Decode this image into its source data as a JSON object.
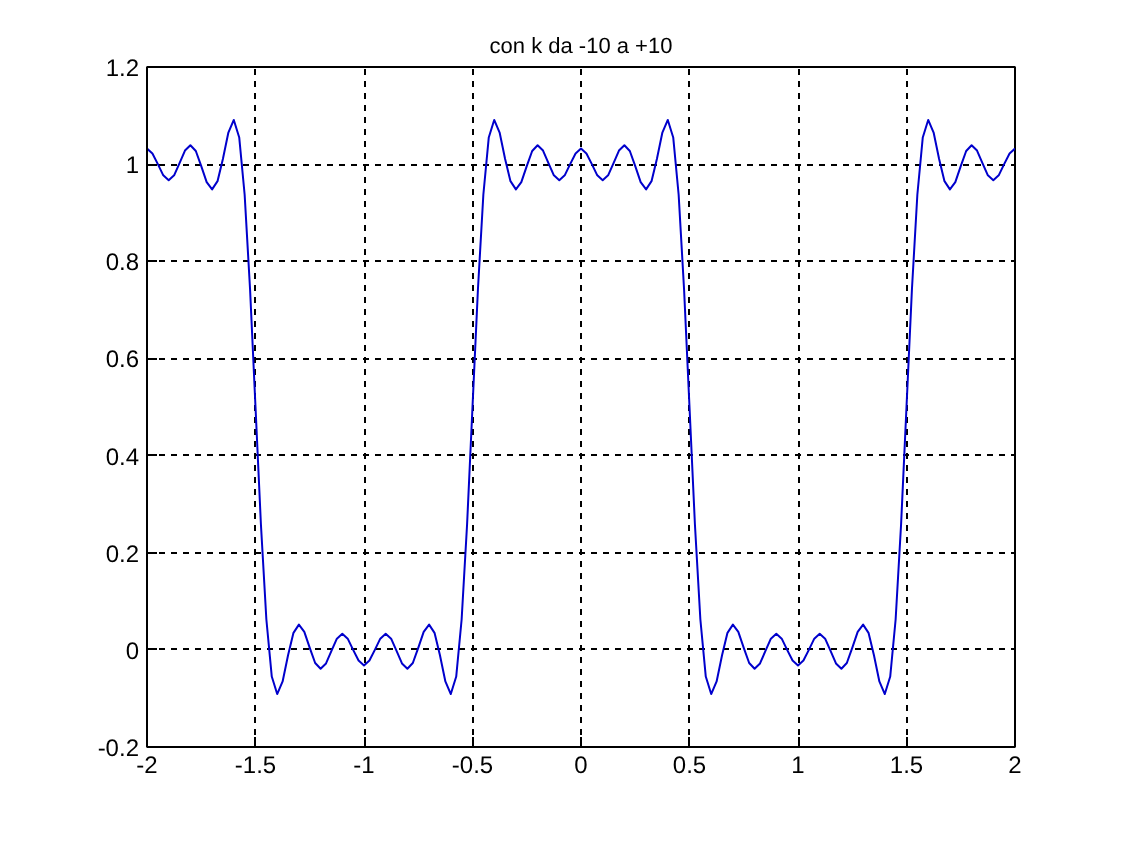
{
  "chart_data": {
    "type": "line",
    "title": "con k da -10 a +10",
    "x": [
      -2,
      -1.975,
      -1.95,
      -1.925,
      -1.9,
      -1.875,
      -1.85,
      -1.825,
      -1.8,
      -1.775,
      -1.75,
      -1.725,
      -1.7,
      -1.675,
      -1.65,
      -1.625,
      -1.6,
      -1.575,
      -1.55,
      -1.525,
      -1.5,
      -1.475,
      -1.45,
      -1.425,
      -1.4,
      -1.375,
      -1.35,
      -1.325,
      -1.3,
      -1.275,
      -1.25,
      -1.225,
      -1.2,
      -1.175,
      -1.15,
      -1.125,
      -1.1,
      -1.075,
      -1.05,
      -1.025,
      -1,
      -0.975,
      -0.95,
      -0.925,
      -0.9,
      -0.875,
      -0.85,
      -0.825,
      -0.8,
      -0.775,
      -0.75,
      -0.725,
      -0.7,
      -0.675,
      -0.65,
      -0.625,
      -0.6,
      -0.575,
      -0.55,
      -0.525,
      -0.5,
      -0.475,
      -0.45,
      -0.425,
      -0.4,
      -0.375,
      -0.35,
      -0.325,
      -0.3,
      -0.275,
      -0.25,
      -0.225,
      -0.2,
      -0.175,
      -0.15,
      -0.125,
      -0.1,
      -0.075,
      -0.05,
      -0.025,
      0,
      0.025,
      0.05,
      0.075,
      0.1,
      0.125,
      0.15,
      0.175,
      0.2,
      0.225,
      0.25,
      0.275,
      0.3,
      0.325,
      0.35,
      0.375,
      0.4,
      0.425,
      0.45,
      0.475,
      0.5,
      0.525,
      0.55,
      0.575,
      0.6,
      0.625,
      0.65,
      0.675,
      0.7,
      0.725,
      0.75,
      0.775,
      0.8,
      0.825,
      0.85,
      0.875,
      0.9,
      0.925,
      0.95,
      0.975,
      1,
      1.025,
      1.05,
      1.075,
      1.1,
      1.125,
      1.15,
      1.175,
      1.2,
      1.225,
      1.25,
      1.275,
      1.3,
      1.325,
      1.35,
      1.375,
      1.4,
      1.425,
      1.45,
      1.475,
      1.5,
      1.525,
      1.55,
      1.575,
      1.6,
      1.625,
      1.65,
      1.675,
      1.7,
      1.725,
      1.75,
      1.775,
      1.8,
      1.825,
      1.85,
      1.875,
      1.9,
      1.925,
      1.95,
      1.975,
      2
    ],
    "series": [
      {
        "color": "#0000cc",
        "values": [
          1.032,
          1.022,
          1.0,
          0.977,
          0.967,
          0.977,
          1.002,
          1.028,
          1.039,
          1.027,
          0.996,
          0.963,
          0.948,
          0.965,
          1.011,
          1.065,
          1.091,
          1.055,
          0.937,
          0.742,
          0.5,
          0.258,
          0.063,
          -0.055,
          -0.091,
          -0.065,
          -0.011,
          0.035,
          0.052,
          0.037,
          0.004,
          -0.027,
          -0.039,
          -0.028,
          -0.002,
          0.023,
          0.033,
          0.023,
          0.0,
          -0.022,
          -0.032,
          -0.022,
          0.0,
          0.023,
          0.033,
          0.023,
          -0.002,
          -0.028,
          -0.039,
          -0.027,
          0.004,
          0.037,
          0.052,
          0.035,
          -0.011,
          -0.065,
          -0.091,
          -0.055,
          0.063,
          0.258,
          0.5,
          0.742,
          0.937,
          1.055,
          1.091,
          1.065,
          1.011,
          0.965,
          0.948,
          0.963,
          0.996,
          1.027,
          1.039,
          1.028,
          1.002,
          0.977,
          0.967,
          0.977,
          1.0,
          1.022,
          1.032,
          1.022,
          1.0,
          0.977,
          0.967,
          0.977,
          1.002,
          1.028,
          1.039,
          1.027,
          0.996,
          0.963,
          0.948,
          0.965,
          1.011,
          1.065,
          1.091,
          1.055,
          0.937,
          0.742,
          0.5,
          0.258,
          0.063,
          -0.055,
          -0.091,
          -0.065,
          -0.011,
          0.035,
          0.052,
          0.037,
          0.004,
          -0.027,
          -0.039,
          -0.028,
          -0.002,
          0.023,
          0.033,
          0.023,
          0.0,
          -0.022,
          -0.032,
          -0.022,
          0.0,
          0.023,
          0.033,
          0.023,
          -0.002,
          -0.028,
          -0.039,
          -0.027,
          0.004,
          0.037,
          0.052,
          0.035,
          -0.011,
          -0.065,
          -0.091,
          -0.055,
          0.063,
          0.258,
          0.5,
          0.742,
          0.937,
          1.055,
          1.091,
          1.065,
          1.011,
          0.965,
          0.948,
          0.963,
          0.996,
          1.027,
          1.039,
          1.028,
          1.002,
          0.977,
          0.967,
          0.977,
          1.0,
          1.022,
          1.032
        ]
      }
    ],
    "xlim": [
      -2,
      2
    ],
    "ylim": [
      -0.2,
      1.2
    ],
    "xticks": [
      -2,
      -1.5,
      -1,
      -0.5,
      0,
      0.5,
      1,
      1.5,
      2
    ],
    "yticks": [
      -0.2,
      0,
      0.2,
      0.4,
      0.6,
      0.8,
      1,
      1.2
    ],
    "grid": true
  }
}
